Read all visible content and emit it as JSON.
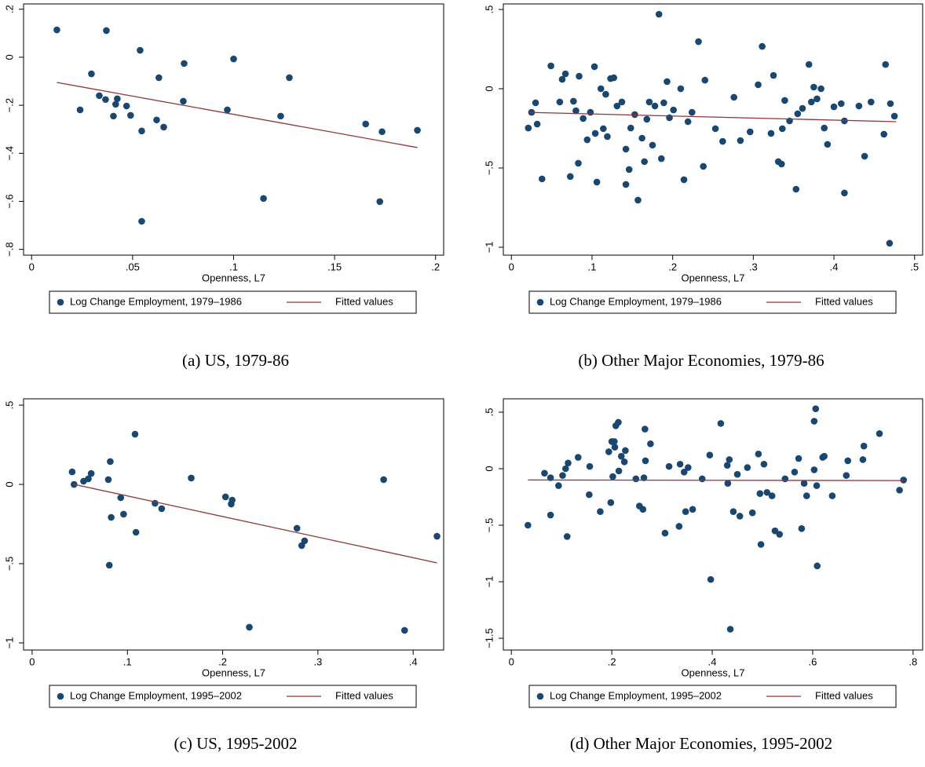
{
  "chart_data": [
    {
      "type": "scatter",
      "caption": "(a) US, 1979-86",
      "xlabel": "Openness, L7",
      "xlim": [
        -0.004,
        0.204
      ],
      "ylim": [
        -0.824,
        0.222
      ],
      "xticks": [
        0,
        {
          "value": 0.05,
          "label": ".05"
        },
        {
          "value": 0.1,
          "label": ".1"
        },
        {
          "value": 0.15,
          "label": ".15"
        },
        {
          "value": 0.2,
          "label": ".2"
        }
      ],
      "yticks": [
        {
          "value": 0.2,
          "label": ".2"
        },
        0,
        {
          "value": -0.2,
          "label": "−.2"
        },
        {
          "value": -0.4,
          "label": "−.4"
        },
        {
          "value": -0.6,
          "label": "−.6"
        },
        {
          "value": -0.8,
          "label": "−.8"
        }
      ],
      "series": [
        {
          "name": "Log Change Employment, 1979–1986",
          "color": "#1a476f",
          "x": [
            0.0125,
            0.024,
            0.0296,
            0.0335,
            0.0366,
            0.037,
            0.0405,
            0.0416,
            0.0424,
            0.047,
            0.049,
            0.0537,
            0.0545,
            0.0545,
            0.0619,
            0.063,
            0.0654,
            0.0751,
            0.0755,
            0.0969,
            0.1,
            0.1148,
            0.1233,
            0.1276,
            0.1654,
            0.1724,
            0.1735,
            0.191
          ],
          "values": [
            0.114,
            -0.219,
            -0.069,
            -0.16,
            -0.176,
            0.111,
            -0.245,
            -0.196,
            -0.173,
            -0.203,
            -0.242,
            0.029,
            -0.307,
            -0.683,
            -0.261,
            -0.085,
            -0.291,
            -0.183,
            -0.026,
            -0.219,
            -0.007,
            -0.588,
            -0.245,
            -0.085,
            -0.278,
            -0.601,
            -0.31,
            -0.304
          ]
        },
        {
          "name": "Fitted values",
          "color": "#90353b",
          "type": "line",
          "x": [
            0.0125,
            0.191
          ],
          "values": [
            -0.105,
            -0.376
          ]
        }
      ]
    },
    {
      "type": "scatter",
      "caption": "(b) Other Major Economies, 1979-86",
      "xlabel": "Openness, L7",
      "xlim": [
        -0.01,
        0.51
      ],
      "ylim": [
        -1.05,
        0.535
      ],
      "xticks": [
        0,
        {
          "value": 0.1,
          "label": ".1"
        },
        {
          "value": 0.2,
          "label": ".2"
        },
        {
          "value": 0.3,
          "label": ".3"
        },
        {
          "value": 0.4,
          "label": ".4"
        },
        {
          "value": 0.5,
          "label": ".5"
        }
      ],
      "yticks": [
        {
          "value": 0.5,
          "label": ".5"
        },
        0,
        {
          "value": -0.5,
          "label": "−.5"
        },
        {
          "value": -1,
          "label": "−1"
        }
      ],
      "series": [
        {
          "name": "Log Change Employment, 1979–1986",
          "color": "#1a476f",
          "x": [
            0.021,
            0.025,
            0.03,
            0.032,
            0.038,
            0.049,
            0.06,
            0.063,
            0.067,
            0.073,
            0.077,
            0.08,
            0.084,
            0.083,
            0.089,
            0.094,
            0.098,
            0.103,
            0.104,
            0.106,
            0.111,
            0.114,
            0.117,
            0.119,
            0.123,
            0.127,
            0.131,
            0.137,
            0.142,
            0.142,
            0.146,
            0.148,
            0.153,
            0.157,
            0.162,
            0.165,
            0.168,
            0.171,
            0.175,
            0.178,
            0.183,
            0.186,
            0.189,
            0.193,
            0.196,
            0.201,
            0.21,
            0.214,
            0.219,
            0.224,
            0.232,
            0.238,
            0.24,
            0.253,
            0.262,
            0.276,
            0.284,
            0.296,
            0.306,
            0.311,
            0.322,
            0.325,
            0.331,
            0.335,
            0.336,
            0.339,
            0.345,
            0.353,
            0.355,
            0.361,
            0.369,
            0.372,
            0.375,
            0.379,
            0.384,
            0.388,
            0.392,
            0.4,
            0.409,
            0.413,
            0.413,
            0.431,
            0.438,
            0.446,
            0.462,
            0.464,
            0.469,
            0.475,
            0.47
          ],
          "values": [
            -0.248,
            -0.149,
            -0.089,
            -0.223,
            -0.569,
            0.144,
            -0.084,
            0.059,
            0.094,
            -0.554,
            -0.079,
            -0.139,
            0.079,
            -0.47,
            -0.188,
            -0.322,
            -0.149,
            0.139,
            -0.282,
            -0.589,
            0,
            -0.252,
            -0.035,
            -0.302,
            0.064,
            0.069,
            -0.109,
            -0.084,
            -0.604,
            -0.381,
            -0.51,
            -0.248,
            -0.163,
            -0.703,
            -0.312,
            -0.46,
            -0.193,
            -0.084,
            -0.356,
            -0.109,
            0.47,
            -0.441,
            -0.089,
            0.045,
            -0.183,
            -0.134,
            0,
            -0.574,
            -0.208,
            -0.149,
            0.297,
            -0.49,
            0.054,
            -0.252,
            -0.332,
            -0.054,
            -0.327,
            -0.272,
            0.025,
            0.267,
            -0.282,
            0.084,
            -0.46,
            -0.475,
            -0.252,
            -0.074,
            -0.203,
            -0.634,
            -0.158,
            -0.124,
            0.153,
            -0.084,
            0.01,
            -0.064,
            0,
            -0.248,
            -0.351,
            -0.114,
            -0.094,
            -0.203,
            -0.658,
            -0.109,
            -0.426,
            -0.084,
            -0.287,
            0.153,
            -0.975,
            -0.173,
            -0.094
          ]
        },
        {
          "name": "Fitted values",
          "color": "#90353b",
          "type": "line",
          "x": [
            0.021,
            0.477
          ],
          "values": [
            -0.149,
            -0.208
          ]
        }
      ]
    },
    {
      "type": "scatter",
      "caption": "(c) US, 1995-2002",
      "xlabel": "Openness, L7",
      "xlim": [
        -0.009,
        0.432
      ],
      "ylim": [
        -1.045,
        0.54
      ],
      "xticks": [
        0,
        {
          "value": 0.1,
          "label": ".1"
        },
        {
          "value": 0.2,
          "label": ".2"
        },
        {
          "value": 0.3,
          "label": ".3"
        },
        {
          "value": 0.4,
          "label": ".4"
        }
      ],
      "yticks": [
        {
          "value": 0.5,
          "label": ".5"
        },
        0,
        {
          "value": -0.5,
          "label": "−.5"
        },
        {
          "value": -1,
          "label": "−1"
        }
      ],
      "series": [
        {
          "name": "Log Change Employment, 1995–2002",
          "color": "#1a476f",
          "x": [
            0.042,
            0.044,
            0.054,
            0.059,
            0.062,
            0.08,
            0.082,
            0.081,
            0.083,
            0.093,
            0.096,
            0.108,
            0.109,
            0.129,
            0.136,
            0.167,
            0.203,
            0.209,
            0.21,
            0.228,
            0.278,
            0.283,
            0.286,
            0.369,
            0.391,
            0.425
          ],
          "values": [
            0.079,
            0,
            0.02,
            0.035,
            0.069,
            0.03,
            0.144,
            -0.51,
            -0.208,
            -0.084,
            -0.188,
            0.317,
            -0.302,
            -0.119,
            -0.153,
            0.04,
            -0.079,
            -0.124,
            -0.099,
            -0.901,
            -0.277,
            -0.386,
            -0.356,
            0.03,
            -0.921,
            -0.327
          ]
        },
        {
          "name": "Fitted values",
          "color": "#90353b",
          "type": "line",
          "x": [
            0.044,
            0.425
          ],
          "values": [
            0,
            -0.495
          ]
        }
      ]
    },
    {
      "type": "scatter",
      "caption": "(d) Other Major Economies, 1995-2002",
      "xlabel": "Openness, L7",
      "xlim": [
        -0.016,
        0.819
      ],
      "ylim": [
        -1.604,
        0.618
      ],
      "xticks": [
        0,
        {
          "value": 0.2,
          "label": ".2"
        },
        {
          "value": 0.4,
          "label": ".4"
        },
        {
          "value": 0.6,
          "label": ".6"
        },
        {
          "value": 0.8,
          "label": ".8"
        }
      ],
      "yticks": [
        {
          "value": 0.5,
          "label": ".5"
        },
        0,
        {
          "value": -0.5,
          "label": "−.5"
        },
        {
          "value": -1,
          "label": "−1"
        },
        {
          "value": -1.5,
          "label": "−1.5"
        }
      ],
      "series": [
        {
          "name": "Log Change Employment, 1995–2002",
          "color": "#1a476f",
          "x": [
            0.033,
            0.066,
            0.078,
            0.078,
            0.094,
            0.102,
            0.108,
            0.111,
            0.113,
            0.133,
            0.155,
            0.156,
            0.177,
            0.194,
            0.198,
            0.2,
            0.202,
            0.205,
            0.206,
            0.208,
            0.213,
            0.214,
            0.219,
            0.225,
            0.227,
            0.248,
            0.255,
            0.262,
            0.264,
            0.266,
            0.267,
            0.277,
            0.306,
            0.314,
            0.334,
            0.336,
            0.344,
            0.347,
            0.352,
            0.361,
            0.38,
            0.397,
            0.395,
            0.417,
            0.43,
            0.431,
            0.434,
            0.436,
            0.442,
            0.45,
            0.455,
            0.47,
            0.48,
            0.492,
            0.495,
            0.497,
            0.503,
            0.509,
            0.519,
            0.525,
            0.534,
            0.545,
            0.564,
            0.572,
            0.578,
            0.583,
            0.588,
            0.603,
            0.603,
            0.606,
            0.608,
            0.609,
            0.62,
            0.623,
            0.639,
            0.667,
            0.67,
            0.7,
            0.702,
            0.733,
            0.773,
            0.781
          ],
          "values": [
            -0.5,
            -0.04,
            -0.08,
            -0.41,
            -0.15,
            -0.06,
            0,
            -0.6,
            0.05,
            0.1,
            -0.23,
            0.02,
            -0.38,
            0.15,
            -0.3,
            0.24,
            -0.07,
            0.24,
            0.19,
            0.38,
            0.41,
            -0.02,
            0.11,
            0.06,
            0.16,
            -0.09,
            -0.33,
            -0.36,
            -0.08,
            0.35,
            0.07,
            0.22,
            -0.57,
            0.02,
            -0.51,
            0.04,
            -0.03,
            -0.38,
            0.01,
            -0.36,
            -0.09,
            -0.98,
            0.12,
            0.4,
            0.03,
            -0.13,
            0.08,
            -1.42,
            -0.38,
            -0.05,
            -0.42,
            0.01,
            -0.39,
            0.13,
            -0.22,
            -0.67,
            0.04,
            -0.21,
            -0.24,
            -0.55,
            -0.58,
            -0.09,
            -0.03,
            0.09,
            -0.53,
            -0.13,
            -0.24,
            -0.01,
            0.42,
            0.53,
            -0.15,
            -0.86,
            0.1,
            0.11,
            -0.24,
            -0.06,
            0.07,
            0.08,
            0.2,
            0.31,
            -0.19,
            -0.1
          ]
        },
        {
          "name": "Fitted values",
          "color": "#90353b",
          "type": "line",
          "x": [
            0.033,
            0.781
          ],
          "values": [
            -0.1,
            -0.105
          ]
        }
      ]
    }
  ]
}
